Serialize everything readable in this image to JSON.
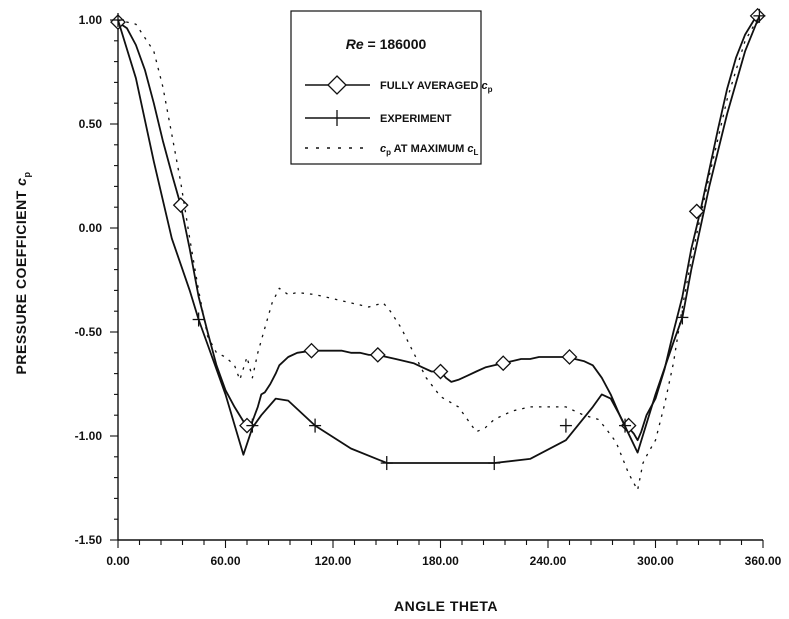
{
  "chart_data": {
    "type": "line",
    "title": "",
    "xlabel": "ANGLE THETA",
    "ylabel_main": "PRESSURE COEFFICIENT",
    "ylabel_var": "c",
    "ylabel_sub": "p",
    "xlim": [
      0,
      360
    ],
    "ylim": [
      -1.5,
      1.0
    ],
    "x_ticks": [
      0,
      60,
      120,
      180,
      240,
      300,
      360
    ],
    "x_tick_labels": [
      "0.00",
      "60.00",
      "120.00",
      "180.00",
      "240.00",
      "300.00",
      "360.00"
    ],
    "y_ticks": [
      1.0,
      0.5,
      0.0,
      -0.5,
      -1.0,
      -1.5
    ],
    "y_tick_labels": [
      "1.00",
      "0.50",
      "0.00",
      "-0.50",
      "-1.00",
      "-1.50"
    ],
    "grid": false,
    "legend": {
      "placement": "top-center",
      "title_var": "Re",
      "title_value": "= 186000",
      "entries": [
        {
          "main": "FULLY AVERAGED ",
          "var": "c",
          "sub": "p",
          "tail": "",
          "tail_var": "",
          "tail_sub": ""
        },
        {
          "main": "EXPERIMENT",
          "var": "",
          "sub": "",
          "tail": "",
          "tail_var": "",
          "tail_sub": ""
        },
        {
          "main": "",
          "var": "c",
          "sub": "p",
          "tail": " AT MAXIMUM ",
          "tail_var": "c",
          "tail_sub": "L"
        }
      ]
    },
    "series": [
      {
        "style": "solid-diamond",
        "color": "#111111",
        "x": [
          0,
          5,
          10,
          15,
          20,
          25,
          30,
          35,
          40,
          45,
          50,
          55,
          60,
          65,
          70,
          72,
          75,
          78,
          80,
          82,
          85,
          88,
          90,
          95,
          100,
          108,
          115,
          120,
          125,
          130,
          135,
          140,
          145,
          150,
          155,
          160,
          165,
          170,
          175,
          180,
          183,
          186,
          190,
          195,
          200,
          205,
          210,
          215,
          220,
          225,
          230,
          235,
          240,
          245,
          250,
          255,
          260,
          265,
          270,
          275,
          280,
          283,
          285,
          288,
          290,
          292,
          295,
          300,
          305,
          310,
          315,
          320,
          325,
          330,
          335,
          340,
          345,
          350,
          355,
          358
        ],
        "y": [
          0.99,
          0.96,
          0.88,
          0.76,
          0.6,
          0.42,
          0.26,
          0.11,
          -0.1,
          -0.33,
          -0.5,
          -0.66,
          -0.78,
          -0.86,
          -0.93,
          -0.96,
          -0.93,
          -0.86,
          -0.8,
          -0.79,
          -0.75,
          -0.7,
          -0.66,
          -0.62,
          -0.6,
          -0.59,
          -0.59,
          -0.59,
          -0.59,
          -0.6,
          -0.6,
          -0.61,
          -0.61,
          -0.62,
          -0.63,
          -0.64,
          -0.65,
          -0.67,
          -0.69,
          -0.69,
          -0.72,
          -0.74,
          -0.73,
          -0.71,
          -0.69,
          -0.67,
          -0.66,
          -0.65,
          -0.64,
          -0.63,
          -0.63,
          -0.62,
          -0.62,
          -0.62,
          -0.62,
          -0.63,
          -0.64,
          -0.66,
          -0.72,
          -0.8,
          -0.9,
          -0.95,
          -0.96,
          -0.99,
          -1.02,
          -0.98,
          -0.9,
          -0.82,
          -0.68,
          -0.5,
          -0.33,
          -0.1,
          0.08,
          0.28,
          0.48,
          0.67,
          0.82,
          0.93,
          1.0,
          1.02
        ],
        "markers": [
          [
            0,
            0.99
          ],
          [
            35,
            0.11
          ],
          [
            72,
            -0.95
          ],
          [
            108,
            -0.59
          ],
          [
            145,
            -0.61
          ],
          [
            180,
            -0.69
          ],
          [
            215,
            -0.65
          ],
          [
            252,
            -0.62
          ],
          [
            285,
            -0.95
          ],
          [
            323,
            0.08
          ],
          [
            357,
            1.02
          ]
        ]
      },
      {
        "style": "solid-plus",
        "color": "#111111",
        "x": [
          0,
          10,
          20,
          30,
          40,
          45,
          50,
          60,
          70,
          75,
          80,
          88,
          95,
          110,
          130,
          150,
          180,
          210,
          230,
          250,
          265,
          270,
          275,
          280,
          290,
          300,
          310,
          315,
          320,
          330,
          340,
          350,
          358
        ],
        "y": [
          1.0,
          0.72,
          0.32,
          -0.05,
          -0.3,
          -0.44,
          -0.56,
          -0.8,
          -1.09,
          -0.96,
          -0.9,
          -0.82,
          -0.83,
          -0.95,
          -1.06,
          -1.13,
          -1.13,
          -1.13,
          -1.11,
          -1.02,
          -0.86,
          -0.8,
          -0.82,
          -0.9,
          -1.08,
          -0.8,
          -0.55,
          -0.43,
          -0.2,
          0.2,
          0.55,
          0.85,
          1.02
        ],
        "markers": [
          [
            0,
            1.0
          ],
          [
            45,
            -0.44
          ],
          [
            75,
            -0.95
          ],
          [
            110,
            -0.95
          ],
          [
            150,
            -1.13
          ],
          [
            210,
            -1.13
          ],
          [
            250,
            -0.95
          ],
          [
            283,
            -0.95
          ],
          [
            315,
            -0.43
          ],
          [
            358,
            1.02
          ]
        ]
      },
      {
        "style": "dotted",
        "color": "#111111",
        "x": [
          0,
          10,
          20,
          25,
          30,
          35,
          40,
          45,
          50,
          55,
          60,
          65,
          68,
          72,
          75,
          78,
          82,
          86,
          90,
          95,
          100,
          110,
          120,
          130,
          140,
          148,
          152,
          158,
          165,
          172,
          180,
          190,
          200,
          205,
          210,
          220,
          230,
          240,
          250,
          260,
          268,
          272,
          278,
          285,
          290,
          293,
          296,
          300,
          305,
          310,
          315,
          320,
          330,
          340,
          350,
          358
        ],
        "y": [
          1.0,
          0.98,
          0.85,
          0.68,
          0.45,
          0.22,
          -0.05,
          -0.3,
          -0.52,
          -0.6,
          -0.62,
          -0.66,
          -0.73,
          -0.62,
          -0.72,
          -0.6,
          -0.48,
          -0.36,
          -0.29,
          -0.32,
          -0.31,
          -0.32,
          -0.34,
          -0.36,
          -0.38,
          -0.36,
          -0.4,
          -0.48,
          -0.6,
          -0.72,
          -0.81,
          -0.86,
          -0.98,
          -0.96,
          -0.92,
          -0.88,
          -0.86,
          -0.86,
          -0.86,
          -0.9,
          -0.92,
          -0.96,
          -1.03,
          -1.18,
          -1.26,
          -1.13,
          -1.08,
          -1.02,
          -0.85,
          -0.65,
          -0.38,
          -0.15,
          0.25,
          0.62,
          0.9,
          1.02
        ],
        "markers": []
      }
    ]
  }
}
